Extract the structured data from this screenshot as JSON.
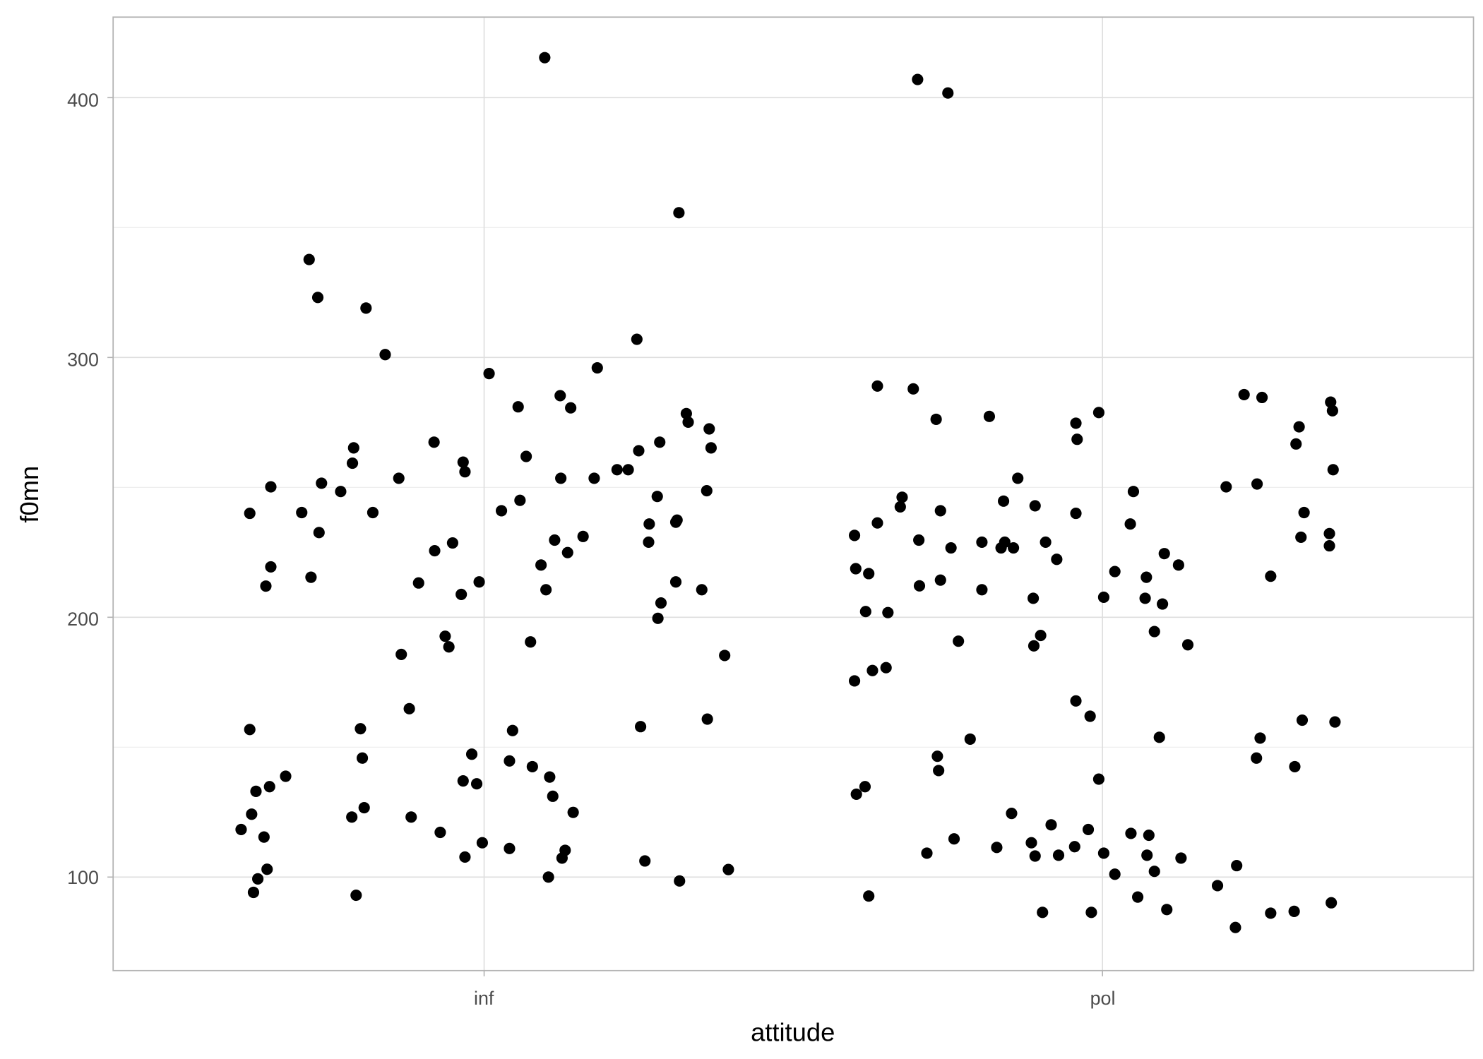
{
  "chart_data": {
    "type": "scatter",
    "title": "",
    "xlabel": "attitude",
    "ylabel": "f0mn",
    "x_categories": [
      "inf",
      "pol"
    ],
    "x_note_units": "category position (inf = 1, pol = 2), jittered",
    "xlim": [
      0.4,
      2.6
    ],
    "ylim": [
      64,
      431
    ],
    "y_ticks": [
      100,
      200,
      300,
      400
    ],
    "y_minor_ticks": [
      150,
      250,
      350
    ],
    "grid": true,
    "point_color": "#000000",
    "points": [
      [
        0.607,
        118.3
      ],
      [
        0.621,
        240
      ],
      [
        0.621,
        156.8
      ],
      [
        0.624,
        124.2
      ],
      [
        0.627,
        94.1
      ],
      [
        0.631,
        133
      ],
      [
        0.634,
        99.3
      ],
      [
        0.644,
        115.4
      ],
      [
        0.647,
        212
      ],
      [
        0.649,
        103
      ],
      [
        0.653,
        134.8
      ],
      [
        0.655,
        219.4
      ],
      [
        0.655,
        250.2
      ],
      [
        0.679,
        138.8
      ],
      [
        0.705,
        240.3
      ],
      [
        0.717,
        337.7
      ],
      [
        0.72,
        215.4
      ],
      [
        0.731,
        323.1
      ],
      [
        0.733,
        232.6
      ],
      [
        0.737,
        251.6
      ],
      [
        0.768,
        248.4
      ],
      [
        0.786,
        123.1
      ],
      [
        0.787,
        259.3
      ],
      [
        0.789,
        265.2
      ],
      [
        0.793,
        93
      ],
      [
        0.8,
        157.1
      ],
      [
        0.803,
        145.8
      ],
      [
        0.806,
        126.7
      ],
      [
        0.809,
        319
      ],
      [
        0.82,
        240.3
      ],
      [
        0.84,
        301.1
      ],
      [
        0.862,
        253.5
      ],
      [
        0.866,
        185.7
      ],
      [
        0.879,
        164.8
      ],
      [
        0.882,
        123.1
      ],
      [
        0.894,
        213.2
      ],
      [
        0.919,
        267.4
      ],
      [
        0.92,
        225.6
      ],
      [
        0.929,
        117.2
      ],
      [
        0.937,
        192.7
      ],
      [
        0.943,
        188.6
      ],
      [
        0.949,
        228.6
      ],
      [
        0.963,
        208.8
      ],
      [
        0.966,
        259.7
      ],
      [
        0.966,
        137
      ],
      [
        0.969,
        256
      ],
      [
        0.969,
        107.7
      ],
      [
        0.98,
        147.3
      ],
      [
        0.988,
        135.9
      ],
      [
        0.992,
        213.6
      ],
      [
        0.997,
        113.2
      ],
      [
        1.008,
        293.8
      ],
      [
        1.028,
        241
      ],
      [
        1.041,
        144.7
      ],
      [
        1.041,
        111
      ],
      [
        1.046,
        156.4
      ],
      [
        1.055,
        281
      ],
      [
        1.058,
        245
      ],
      [
        1.068,
        261.9
      ],
      [
        1.075,
        190.5
      ],
      [
        1.078,
        142.5
      ],
      [
        1.092,
        220.1
      ],
      [
        1.098,
        415.4
      ],
      [
        1.1,
        210.6
      ],
      [
        1.104,
        100
      ],
      [
        1.106,
        138.5
      ],
      [
        1.111,
        131.1
      ],
      [
        1.114,
        229.7
      ],
      [
        1.123,
        285.3
      ],
      [
        1.124,
        253.5
      ],
      [
        1.126,
        107.3
      ],
      [
        1.131,
        110.3
      ],
      [
        1.135,
        224.9
      ],
      [
        1.14,
        280.6
      ],
      [
        1.144,
        124.9
      ],
      [
        1.16,
        231.1
      ],
      [
        1.178,
        253.5
      ],
      [
        1.183,
        296
      ],
      [
        1.215,
        256.8
      ],
      [
        1.233,
        256.8
      ],
      [
        1.247,
        307
      ],
      [
        1.25,
        264.1
      ],
      [
        1.253,
        157.9
      ],
      [
        1.26,
        106.2
      ],
      [
        1.266,
        228.9
      ],
      [
        1.267,
        235.9
      ],
      [
        1.28,
        246.5
      ],
      [
        1.281,
        199.6
      ],
      [
        1.284,
        267.4
      ],
      [
        1.286,
        205.5
      ],
      [
        1.31,
        213.6
      ],
      [
        1.31,
        236.6
      ],
      [
        1.312,
        237.4
      ],
      [
        1.315,
        355.7
      ],
      [
        1.316,
        98.5
      ],
      [
        1.327,
        278.4
      ],
      [
        1.33,
        275.1
      ],
      [
        1.352,
        210.6
      ],
      [
        1.36,
        248.7
      ],
      [
        1.361,
        160.8
      ],
      [
        1.364,
        272.5
      ],
      [
        1.367,
        265.2
      ],
      [
        1.389,
        185.3
      ],
      [
        1.395,
        102.9
      ],
      [
        1.599,
        231.5
      ],
      [
        1.599,
        175.5
      ],
      [
        1.601,
        218.7
      ],
      [
        1.602,
        131.9
      ],
      [
        1.616,
        134.8
      ],
      [
        1.617,
        202.2
      ],
      [
        1.622,
        216.8
      ],
      [
        1.622,
        92.7
      ],
      [
        1.628,
        179.5
      ],
      [
        1.636,
        289
      ],
      [
        1.636,
        236.3
      ],
      [
        1.65,
        180.6
      ],
      [
        1.653,
        201.8
      ],
      [
        1.673,
        242.5
      ],
      [
        1.676,
        246.2
      ],
      [
        1.694,
        287.9
      ],
      [
        1.701,
        407
      ],
      [
        1.703,
        229.7
      ],
      [
        1.704,
        212.1
      ],
      [
        1.716,
        109.2
      ],
      [
        1.731,
        276.2
      ],
      [
        1.733,
        146.5
      ],
      [
        1.735,
        141
      ],
      [
        1.738,
        241
      ],
      [
        1.738,
        214.3
      ],
      [
        1.75,
        401.8
      ],
      [
        1.755,
        226.7
      ],
      [
        1.76,
        114.7
      ],
      [
        1.767,
        190.8
      ],
      [
        1.786,
        153.1
      ],
      [
        1.805,
        228.9
      ],
      [
        1.805,
        210.6
      ],
      [
        1.817,
        277.3
      ],
      [
        1.829,
        111.4
      ],
      [
        1.836,
        226.7
      ],
      [
        1.84,
        244.7
      ],
      [
        1.842,
        228.9
      ],
      [
        1.853,
        124.5
      ],
      [
        1.856,
        226.7
      ],
      [
        1.863,
        253.5
      ],
      [
        1.885,
        113.2
      ],
      [
        1.888,
        207.3
      ],
      [
        1.889,
        189
      ],
      [
        1.891,
        242.9
      ],
      [
        1.891,
        108.1
      ],
      [
        1.9,
        193
      ],
      [
        1.903,
        86.4
      ],
      [
        1.908,
        228.9
      ],
      [
        1.917,
        120.1
      ],
      [
        1.926,
        222.3
      ],
      [
        1.929,
        108.4
      ],
      [
        1.955,
        111.7
      ],
      [
        1.957,
        240
      ],
      [
        1.957,
        274.7
      ],
      [
        1.959,
        268.5
      ],
      [
        1.957,
        167.8
      ],
      [
        1.977,
        118.3
      ],
      [
        1.98,
        161.9
      ],
      [
        1.982,
        86.4
      ],
      [
        1.994,
        278.8
      ],
      [
        1.994,
        137.7
      ],
      [
        2.002,
        207.7
      ],
      [
        2.002,
        109.2
      ],
      [
        2.02,
        217.6
      ],
      [
        2.02,
        101.1
      ],
      [
        2.045,
        235.9
      ],
      [
        2.046,
        116.8
      ],
      [
        2.05,
        248.4
      ],
      [
        2.057,
        92.3
      ],
      [
        2.069,
        207.3
      ],
      [
        2.071,
        215.4
      ],
      [
        2.072,
        108.4
      ],
      [
        2.075,
        116.1
      ],
      [
        2.084,
        194.5
      ],
      [
        2.084,
        102.2
      ],
      [
        2.092,
        153.8
      ],
      [
        2.097,
        205.1
      ],
      [
        2.1,
        224.5
      ],
      [
        2.104,
        87.5
      ],
      [
        2.123,
        220.1
      ],
      [
        2.127,
        107.3
      ],
      [
        2.138,
        189.4
      ],
      [
        2.186,
        96.7
      ],
      [
        2.2,
        250.2
      ],
      [
        2.215,
        80.6
      ],
      [
        2.217,
        104.4
      ],
      [
        2.229,
        285.7
      ],
      [
        2.249,
        145.8
      ],
      [
        2.25,
        251.3
      ],
      [
        2.255,
        153.5
      ],
      [
        2.258,
        284.6
      ],
      [
        2.272,
        215.8
      ],
      [
        2.272,
        86.1
      ],
      [
        2.31,
        86.8
      ],
      [
        2.311,
        142.5
      ],
      [
        2.313,
        266.7
      ],
      [
        2.318,
        273.3
      ],
      [
        2.321,
        230.8
      ],
      [
        2.323,
        160.4
      ],
      [
        2.326,
        240.3
      ],
      [
        2.367,
        232.2
      ],
      [
        2.367,
        227.5
      ],
      [
        2.369,
        282.8
      ],
      [
        2.37,
        90.1
      ],
      [
        2.372,
        279.5
      ],
      [
        2.373,
        256.8
      ],
      [
        2.376,
        159.7
      ]
    ]
  },
  "labels": {
    "y_ticks": [
      "100",
      "200",
      "300",
      "400"
    ],
    "x_ticks": [
      "inf",
      "pol"
    ],
    "xlabel": "attitude",
    "ylabel": "f0mn"
  }
}
